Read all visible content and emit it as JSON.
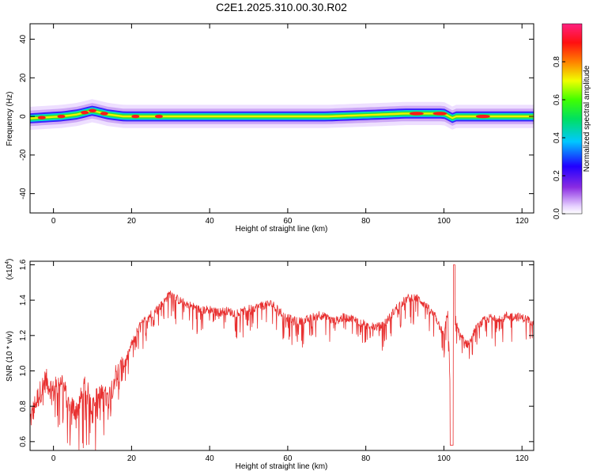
{
  "title": "C2E1.2025.310.00.30.R02",
  "chart_data": [
    {
      "type": "heatmap",
      "title": "C2E1.2025.310.00.30.R02",
      "xlabel": "Height of straight line (km)",
      "ylabel": "Frequency (Hz)",
      "xlim": [
        -6,
        123
      ],
      "ylim": [
        -50,
        48
      ],
      "xticks": [
        0,
        20,
        40,
        60,
        80,
        100,
        120
      ],
      "yticks": [
        -40,
        -20,
        0,
        20,
        40
      ],
      "ridge": {
        "x": [
          -6,
          -2,
          2,
          6,
          8,
          10,
          12,
          14,
          18,
          30,
          50,
          70,
          84,
          90,
          95,
          100,
          101,
          102,
          103,
          108,
          123
        ],
        "y": [
          -1,
          -0.5,
          0,
          1,
          2,
          3,
          2,
          1,
          0,
          0,
          0,
          0,
          1,
          1.5,
          1.5,
          1.5,
          0.5,
          -1,
          0,
          0,
          0
        ]
      },
      "colorbar": {
        "label": "Normalized spectral amplitude",
        "range": [
          0,
          1
        ],
        "ticks": [
          0.0,
          0.2,
          0.4,
          0.6,
          0.8
        ]
      }
    },
    {
      "type": "line",
      "xlabel": "Height of straight line (km)",
      "ylabel": "SNR (10 * v/v)",
      "yscale_label": "(x10",
      "yscale_exp": "4",
      "yscale_close": ")",
      "xlim": [
        -6,
        123
      ],
      "ylim": [
        0.55,
        1.62
      ],
      "xticks": [
        0,
        20,
        40,
        60,
        80,
        100,
        120
      ],
      "yticks": [
        0.6,
        0.8,
        1.0,
        1.2,
        1.4,
        1.6
      ],
      "ytick_labels": [
        "0.6",
        "0.8",
        "1.0",
        "1.2",
        "1.4",
        "1.6"
      ],
      "color": "#e83030",
      "x": [
        -6,
        -4,
        -2,
        0,
        2,
        4,
        6,
        8,
        10,
        12,
        14,
        16,
        18,
        20,
        22,
        24,
        26,
        28,
        30,
        32,
        34,
        36,
        38,
        40,
        42,
        44,
        46,
        48,
        50,
        52,
        54,
        56,
        58,
        60,
        62,
        64,
        66,
        68,
        70,
        72,
        74,
        76,
        78,
        80,
        82,
        84,
        86,
        88,
        90,
        92,
        94,
        96,
        98,
        100,
        101,
        102,
        103,
        104,
        106,
        108,
        110,
        112,
        114,
        116,
        118,
        120,
        123
      ],
      "y": [
        0.72,
        0.85,
        0.95,
        0.88,
        0.96,
        0.8,
        0.78,
        0.9,
        0.82,
        0.86,
        0.84,
        0.98,
        1.02,
        1.15,
        1.25,
        1.3,
        1.34,
        1.38,
        1.44,
        1.4,
        1.38,
        1.36,
        1.34,
        1.35,
        1.33,
        1.34,
        1.33,
        1.33,
        1.35,
        1.36,
        1.37,
        1.38,
        1.33,
        1.3,
        1.28,
        1.28,
        1.3,
        1.32,
        1.3,
        1.28,
        1.3,
        1.3,
        1.28,
        1.26,
        1.25,
        1.25,
        1.3,
        1.36,
        1.4,
        1.42,
        1.4,
        1.35,
        1.3,
        1.2,
        1.35,
        0.6,
        1.3,
        1.2,
        1.15,
        1.23,
        1.28,
        1.3,
        1.3,
        1.31,
        1.31,
        1.3,
        1.28
      ]
    }
  ]
}
